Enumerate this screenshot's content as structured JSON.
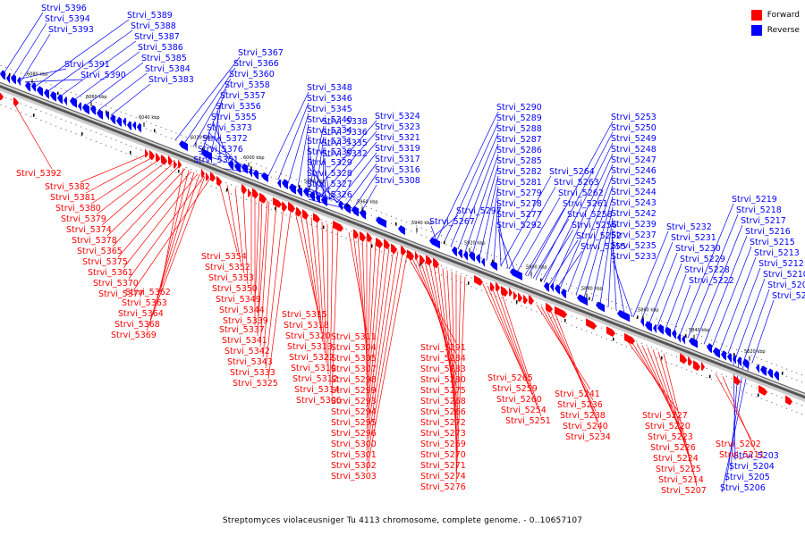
{
  "title": "Streptomyces violaceusniger Tu 4113 chromosome, complete genome. - 0..10657107",
  "legend": [
    {
      "label": "Forward",
      "color": "#ff0000"
    },
    {
      "label": "Reverse",
      "color": "#0000ff"
    }
  ],
  "colors": {
    "forward": "#ff0000",
    "reverse": "#0000ff",
    "backbone": "#999999",
    "marker": "#000000"
  },
  "ticks": [
    "6080 kbp",
    "6060 kbp",
    "6040 kbp",
    "6020 kbp",
    "6000 kbp",
    "5980 kbp",
    "5960 kbp",
    "5940 kbp",
    "5920 kbp",
    "5900 kbp",
    "5880 kbp",
    "5860 kbp",
    "5840 kbp",
    "5820 kbp"
  ],
  "reverse_genes": [
    "Strvi_5396",
    "Strvi_5394",
    "Strvi_5393",
    "Strvi_5389",
    "Strvi_5388",
    "Strvi_5387",
    "Strvi_5386",
    "Strvi_5385",
    "Strvi_5384",
    "Strvi_5383",
    "Strvi_5391",
    "Strvi_5390",
    "Strvi_5367",
    "Strvi_5366",
    "Strvi_5360",
    "Strvi_5358",
    "Strvi_5357",
    "Strvi_5356",
    "Strvi_5355",
    "Strvi_5373",
    "Strvi_5372",
    "Strvi_5376",
    "Strvi_5351",
    "Strvi_5348",
    "Strvi_5346",
    "Strvi_5345",
    "Strvi_5340",
    "Strvi_5334",
    "Strvi_5331",
    "Strvi_5330",
    "Strvi_5329",
    "Strvi_5328",
    "Strvi_5327",
    "Strvi_5326",
    "Strvi_5338",
    "Strvi_5336",
    "Strvi_5335",
    "Strvi_5332",
    "Strvi_5324",
    "Strvi_5323",
    "Strvi_5321",
    "Strvi_5319",
    "Strvi_5317",
    "Strvi_5316",
    "Strvi_5308",
    "Strvi_5290",
    "Strvi_5289",
    "Strvi_5288",
    "Strvi_5287",
    "Strvi_5286",
    "Strvi_5285",
    "Strvi_5282",
    "Strvi_5281",
    "Strvi_5279",
    "Strvi_5278",
    "Strvi_5277",
    "Strvi_5292",
    "Strvi_5297",
    "Strvi_5267",
    "Strvi_5264",
    "Strvi_5263",
    "Strvi_5262",
    "Strvi_5261",
    "Strvi_5258",
    "Strvi_5256",
    "Strvi_5252",
    "Strvi_5255",
    "Strvi_5253",
    "Strvi_5250",
    "Strvi_5249",
    "Strvi_5248",
    "Strvi_5247",
    "Strvi_5246",
    "Strvi_5245",
    "Strvi_5244",
    "Strvi_5243",
    "Strvi_5242",
    "Strvi_5239",
    "Strvi_5237",
    "Strvi_5235",
    "Strvi_5233",
    "Strvi_5232",
    "Strvi_5231",
    "Strvi_5230",
    "Strvi_5229",
    "Strvi_5228",
    "Strvi_5222",
    "Strvi_5219",
    "Strvi_5218",
    "Strvi_5217",
    "Strvi_5216",
    "Strvi_5215",
    "Strvi_5213",
    "Strvi_5212",
    "Strvi_5210",
    "Strvi_5209",
    "Strvi_5201",
    "Strvi_5203",
    "Strvi_5204",
    "Strvi_5205",
    "Strvi_5206"
  ],
  "forward_genes": [
    "Strvi_5392",
    "Strvi_5382",
    "Strvi_5381",
    "Strvi_5380",
    "Strvi_5379",
    "Strvi_5374",
    "Strvi_5378",
    "Strvi_5365",
    "Strvi_5375",
    "Strvi_5361",
    "Strvi_5370",
    "Strvi_5377",
    "Strvi_5362",
    "Strvi_5363",
    "Strvi_5364",
    "Strvi_5368",
    "Strvi_5369",
    "Strvi_5354",
    "Strvi_5352",
    "Strvi_5353",
    "Strvi_5350",
    "Strvi_5349",
    "Strvi_5344",
    "Strvi_5339",
    "Strvi_5337",
    "Strvi_5341",
    "Strvi_5342",
    "Strvi_5343",
    "Strvi_5333",
    "Strvi_5325",
    "Strvi_5315",
    "Strvi_5318",
    "Strvi_5320",
    "Strvi_5313",
    "Strvi_5322",
    "Strvi_5310",
    "Strvi_5312",
    "Strvi_5314",
    "Strvi_5306",
    "Strvi_5311",
    "Strvi_5304",
    "Strvi_5305",
    "Strvi_5307",
    "Strvi_5298",
    "Strvi_5299",
    "Strvi_5293",
    "Strvi_5294",
    "Strvi_5295",
    "Strvi_5296",
    "Strvi_5300",
    "Strvi_5301",
    "Strvi_5302",
    "Strvi_5303",
    "Strvi_5291",
    "Strvi_5284",
    "Strvi_5283",
    "Strvi_5280",
    "Strvi_5275",
    "Strvi_5268",
    "Strvi_5266",
    "Strvi_5272",
    "Strvi_5273",
    "Strvi_5269",
    "Strvi_5270",
    "Strvi_5271",
    "Strvi_5274",
    "Strvi_5276",
    "Strvi_5265",
    "Strvi_5259",
    "Strvi_5260",
    "Strvi_5254",
    "Strvi_5251",
    "Strvi_5241",
    "Strvi_5236",
    "Strvi_5238",
    "Strvi_5240",
    "Strvi_5234",
    "Strvi_5227",
    "Strvi_5220",
    "Strvi_5223",
    "Strvi_5226",
    "Strvi_5224",
    "Strvi_5225",
    "Strvi_5214",
    "Strvi_5207",
    "Strvi_5202",
    "Strvi_5211"
  ]
}
